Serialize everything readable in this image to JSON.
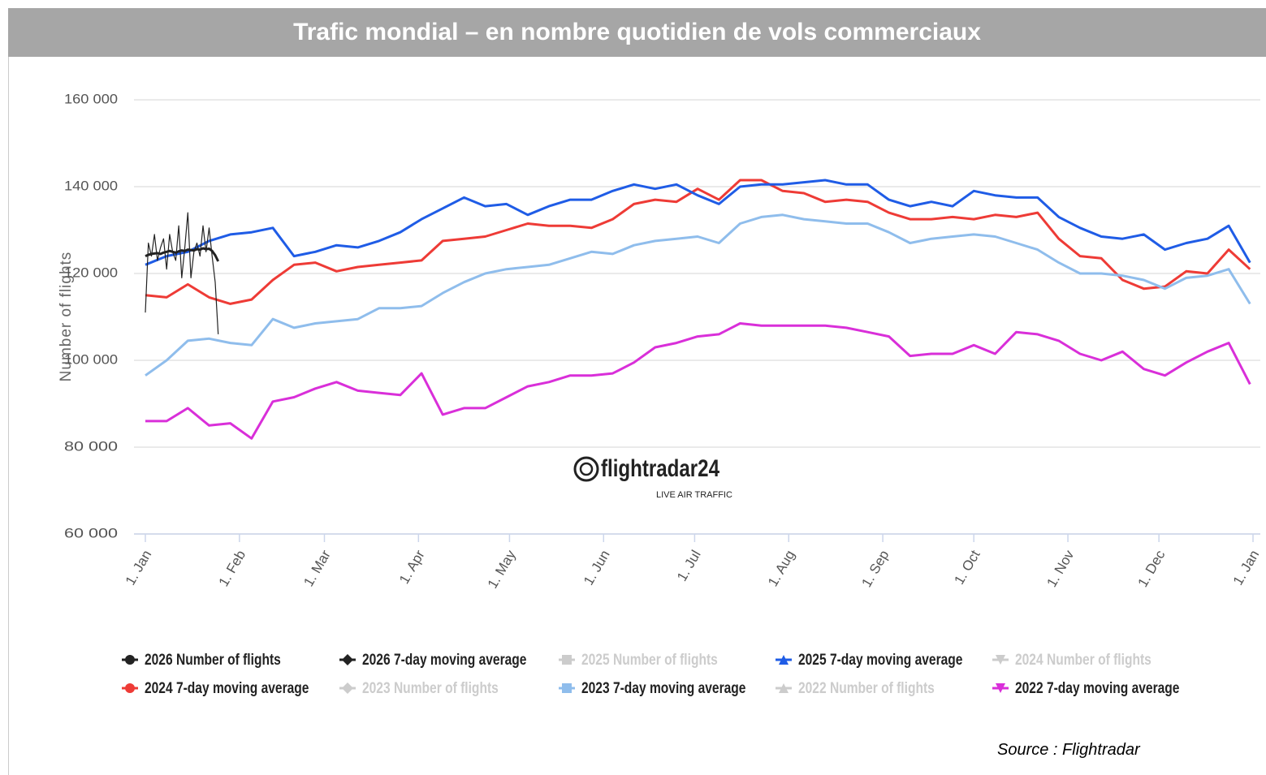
{
  "header": {
    "title": "Trafic mondial – en nombre quotidien de vols commerciaux"
  },
  "chart_data": {
    "type": "line",
    "y_label": "Number of flights",
    "watermark": {
      "name": "flightradar24",
      "tagline": "LIVE AIR TRAFFIC"
    },
    "xlim": [
      0,
      365
    ],
    "xticks": [
      {
        "value": 0,
        "label": "1. Jan"
      },
      {
        "value": 31,
        "label": "1. Feb"
      },
      {
        "value": 59,
        "label": "1. Mar"
      },
      {
        "value": 90,
        "label": "1. Apr"
      },
      {
        "value": 120,
        "label": "1. May"
      },
      {
        "value": 151,
        "label": "1. Jun"
      },
      {
        "value": 181,
        "label": "1. Jul"
      },
      {
        "value": 212,
        "label": "1. Aug"
      },
      {
        "value": 243,
        "label": "1. Sep"
      },
      {
        "value": 273,
        "label": "1. Oct"
      },
      {
        "value": 304,
        "label": "1. Nov"
      },
      {
        "value": 334,
        "label": "1. Dec"
      },
      {
        "value": 365,
        "label": "1. Jan"
      }
    ],
    "ylim": [
      60000,
      160000
    ],
    "yticks": [
      {
        "value": 60000,
        "label": "60 000"
      },
      {
        "value": 80000,
        "label": "80 000"
      },
      {
        "value": 100000,
        "label": "100 000"
      },
      {
        "value": 120000,
        "label": "120 000"
      },
      {
        "value": 140000,
        "label": "140 000"
      },
      {
        "value": 160000,
        "label": "160 000"
      }
    ],
    "grid": true,
    "legend": "bottom",
    "series": [
      {
        "name": "2026 Number of flights",
        "color": "#222222",
        "marker": "circle",
        "visible": true,
        "width": 1.2,
        "x": [
          0,
          1,
          2,
          3,
          4,
          5,
          6,
          7,
          8,
          9,
          10,
          11,
          12,
          13,
          14,
          15,
          16,
          17,
          18,
          19,
          20,
          21,
          22,
          23,
          24
        ],
        "values": [
          111000,
          127000,
          124000,
          129000,
          123000,
          126000,
          128000,
          121000,
          129000,
          125000,
          123000,
          131000,
          119000,
          126000,
          134000,
          119000,
          125000,
          127000,
          124000,
          131000,
          125000,
          130500,
          124000,
          118000,
          106000
        ]
      },
      {
        "name": "2026 7-day moving average",
        "color": "#222222",
        "marker": "diamond",
        "visible": true,
        "width": 3,
        "x": [
          0,
          1,
          2,
          3,
          4,
          5,
          6,
          7,
          8,
          9,
          10,
          11,
          12,
          13,
          14,
          15,
          16,
          17,
          18,
          19,
          20,
          21,
          22,
          23,
          24
        ],
        "values": [
          124000,
          124300,
          124500,
          124600,
          124700,
          124500,
          124800,
          125000,
          125200,
          125000,
          124800,
          125100,
          125300,
          125200,
          125500,
          125400,
          125300,
          125600,
          125500,
          125800,
          125600,
          125700,
          125200,
          124200,
          122800
        ]
      },
      {
        "name": "2025 Number of flights",
        "color": "#cccccc",
        "marker": "square",
        "visible": false
      },
      {
        "name": "2025 7-day moving average",
        "color": "#1f5ce6",
        "marker": "triangle",
        "visible": true,
        "width": 3,
        "x": [
          0,
          7,
          14,
          21,
          28,
          35,
          42,
          49,
          56,
          63,
          70,
          77,
          84,
          91,
          98,
          105,
          112,
          119,
          126,
          133,
          140,
          147,
          154,
          161,
          168,
          175,
          182,
          189,
          196,
          203,
          210,
          217,
          224,
          231,
          238,
          245,
          252,
          259,
          266,
          273,
          280,
          287,
          294,
          301,
          308,
          315,
          322,
          329,
          336,
          343,
          350,
          357,
          364
        ],
        "values": [
          122000,
          124000,
          125000,
          127500,
          129000,
          129500,
          130500,
          124000,
          125000,
          126500,
          126000,
          127500,
          129500,
          132500,
          135000,
          137500,
          135500,
          136000,
          133500,
          135500,
          137000,
          137000,
          139000,
          140500,
          139500,
          140500,
          138000,
          136000,
          140000,
          140500,
          140500,
          141000,
          141500,
          140500,
          140500,
          137000,
          135500,
          136500,
          135500,
          139000,
          138000,
          137500,
          137500,
          133000,
          130500,
          128500,
          128000,
          129000,
          125500,
          127000,
          128000,
          131000,
          122500
        ]
      },
      {
        "name": "2024 Number of flights",
        "color": "#cccccc",
        "marker": "triangle-down",
        "visible": false
      },
      {
        "name": "2024 7-day moving average",
        "color": "#ee3b36",
        "marker": "circle",
        "visible": true,
        "width": 3,
        "x": [
          0,
          7,
          14,
          21,
          28,
          35,
          42,
          49,
          56,
          63,
          70,
          77,
          84,
          91,
          98,
          105,
          112,
          119,
          126,
          133,
          140,
          147,
          154,
          161,
          168,
          175,
          182,
          189,
          196,
          203,
          210,
          217,
          224,
          231,
          238,
          245,
          252,
          259,
          266,
          273,
          280,
          287,
          294,
          301,
          308,
          315,
          322,
          329,
          336,
          343,
          350,
          357,
          364
        ],
        "values": [
          115000,
          114500,
          117500,
          114500,
          113000,
          114000,
          118500,
          122000,
          122500,
          120500,
          121500,
          122000,
          122500,
          123000,
          127500,
          128000,
          128500,
          130000,
          131500,
          131000,
          131000,
          130500,
          132500,
          136000,
          137000,
          136500,
          139500,
          137000,
          141500,
          141500,
          139000,
          138500,
          136500,
          137000,
          136500,
          134000,
          132500,
          132500,
          133000,
          132500,
          133500,
          133000,
          134000,
          128000,
          124000,
          123500,
          118500,
          116500,
          117000,
          120500,
          120000,
          125500,
          121000
        ]
      },
      {
        "name": "2023 Number of flights",
        "color": "#cccccc",
        "marker": "diamond",
        "visible": false
      },
      {
        "name": "2023 7-day moving average",
        "color": "#8fbdec",
        "marker": "square",
        "visible": true,
        "width": 3,
        "x": [
          0,
          7,
          14,
          21,
          28,
          35,
          42,
          49,
          56,
          63,
          70,
          77,
          84,
          91,
          98,
          105,
          112,
          119,
          126,
          133,
          140,
          147,
          154,
          161,
          168,
          175,
          182,
          189,
          196,
          203,
          210,
          217,
          224,
          231,
          238,
          245,
          252,
          259,
          266,
          273,
          280,
          287,
          294,
          301,
          308,
          315,
          322,
          329,
          336,
          343,
          350,
          357,
          364
        ],
        "values": [
          96500,
          100000,
          104500,
          105000,
          104000,
          103500,
          109500,
          107500,
          108500,
          109000,
          109500,
          112000,
          112000,
          112500,
          115500,
          118000,
          120000,
          121000,
          121500,
          122000,
          123500,
          125000,
          124500,
          126500,
          127500,
          128000,
          128500,
          127000,
          131500,
          133000,
          133500,
          132500,
          132000,
          131500,
          131500,
          129500,
          127000,
          128000,
          128500,
          129000,
          128500,
          127000,
          125500,
          122500,
          120000,
          120000,
          119500,
          118500,
          116500,
          119000,
          119500,
          121000,
          113000
        ]
      },
      {
        "name": "2022 Number of flights",
        "color": "#cccccc",
        "marker": "triangle",
        "visible": false
      },
      {
        "name": "2022 7-day moving average",
        "color": "#d92fd9",
        "marker": "triangle-down",
        "visible": true,
        "width": 3,
        "x": [
          0,
          7,
          14,
          21,
          28,
          35,
          42,
          49,
          56,
          63,
          70,
          77,
          84,
          91,
          98,
          105,
          112,
          119,
          126,
          133,
          140,
          147,
          154,
          161,
          168,
          175,
          182,
          189,
          196,
          203,
          210,
          217,
          224,
          231,
          238,
          245,
          252,
          259,
          266,
          273,
          280,
          287,
          294,
          301,
          308,
          315,
          322,
          329,
          336,
          343,
          350,
          357,
          364
        ],
        "values": [
          86000,
          86000,
          89000,
          85000,
          85500,
          82000,
          90500,
          91500,
          93500,
          95000,
          93000,
          92500,
          92000,
          97000,
          87500,
          89000,
          89000,
          91500,
          94000,
          95000,
          96500,
          96500,
          97000,
          99500,
          103000,
          104000,
          105500,
          106000,
          108500,
          108000,
          108000,
          108000,
          108000,
          107500,
          106500,
          105500,
          101000,
          101500,
          101500,
          103500,
          101500,
          106500,
          106000,
          104500,
          101500,
          100000,
          102000,
          98000,
          96500,
          99500,
          102000,
          104000,
          94500
        ]
      }
    ]
  },
  "footer": {
    "source": "Source : Flightradar"
  }
}
